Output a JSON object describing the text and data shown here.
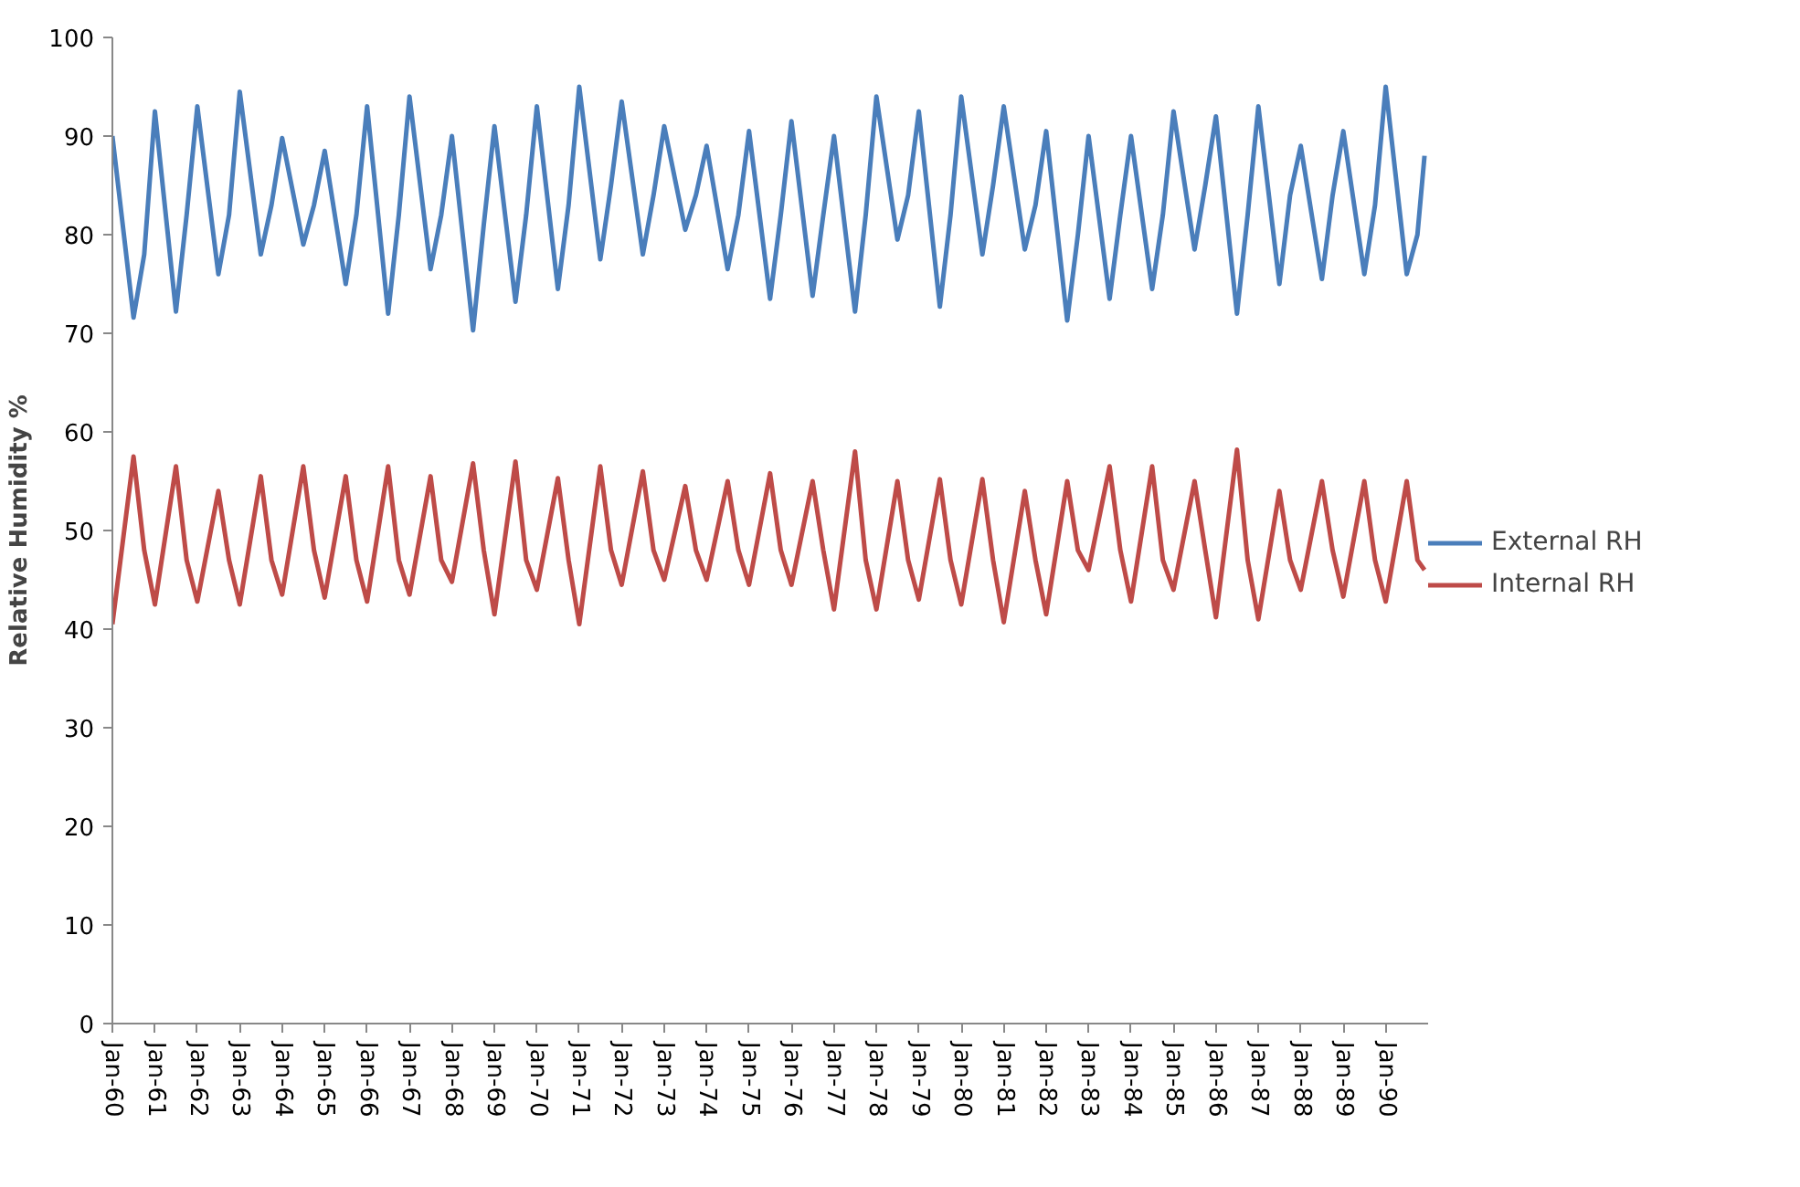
{
  "chart_data": {
    "type": "line",
    "ylabel": "Relative Humidity %",
    "x": [
      "1960-01",
      "1960-07",
      "1960-10",
      "1961-01",
      "1961-07",
      "1961-10",
      "1962-01",
      "1962-07",
      "1962-10",
      "1963-01",
      "1963-07",
      "1963-10",
      "1964-01",
      "1964-07",
      "1964-10",
      "1965-01",
      "1965-07",
      "1965-10",
      "1966-01",
      "1966-07",
      "1966-10",
      "1967-01",
      "1967-07",
      "1967-10",
      "1968-01",
      "1968-07",
      "1968-10",
      "1969-01",
      "1969-07",
      "1969-10",
      "1970-01",
      "1970-07",
      "1970-10",
      "1971-01",
      "1971-07",
      "1971-10",
      "1972-01",
      "1972-07",
      "1972-10",
      "1973-01",
      "1973-07",
      "1973-10",
      "1974-01",
      "1974-07",
      "1974-10",
      "1975-01",
      "1975-07",
      "1975-10",
      "1976-01",
      "1976-07",
      "1976-10",
      "1977-01",
      "1977-07",
      "1977-10",
      "1978-01",
      "1978-07",
      "1978-10",
      "1979-01",
      "1979-07",
      "1979-10",
      "1980-01",
      "1980-07",
      "1980-10",
      "1981-01",
      "1981-07",
      "1981-10",
      "1982-01",
      "1982-07",
      "1982-10",
      "1983-01",
      "1983-07",
      "1983-10",
      "1984-01",
      "1984-07",
      "1984-10",
      "1985-01",
      "1985-07",
      "1985-10",
      "1986-01",
      "1986-07",
      "1986-10",
      "1987-01",
      "1987-07",
      "1987-10",
      "1988-01",
      "1988-07",
      "1988-10",
      "1989-01",
      "1989-07",
      "1989-10",
      "1990-01",
      "1990-07",
      "1990-10",
      "1990-12"
    ],
    "series": [
      {
        "name": "External RH",
        "color": "#4a7ebb",
        "values": [
          90,
          71.6,
          78,
          92.5,
          72.2,
          82,
          93,
          76,
          82,
          94.5,
          78,
          83,
          89.8,
          79,
          83,
          88.5,
          75,
          82,
          93,
          72,
          82,
          94,
          76.5,
          82,
          90,
          70.3,
          81,
          91,
          73.2,
          82,
          93,
          74.5,
          83,
          95,
          77.5,
          85,
          93.5,
          78,
          84,
          91,
          80.5,
          84,
          89,
          76.5,
          82,
          90.5,
          73.5,
          82,
          91.5,
          73.8,
          82,
          90,
          72.2,
          82,
          94,
          79.5,
          84,
          92.5,
          72.7,
          82,
          94,
          78,
          85,
          93,
          78.5,
          83,
          90.5,
          71.3,
          80,
          90,
          73.5,
          82,
          90,
          74.5,
          82,
          92.5,
          78.5,
          85,
          92,
          72,
          82,
          93,
          75,
          84,
          89,
          75.5,
          84,
          90.5,
          76,
          83,
          95,
          76,
          80,
          88
        ]
      },
      {
        "name": "Internal RH",
        "color": "#be4b48",
        "values": [
          40.5,
          57.5,
          48,
          42.5,
          56.5,
          47,
          42.8,
          54,
          47,
          42.5,
          55.5,
          47,
          43.5,
          56.5,
          48,
          43.2,
          55.5,
          47,
          42.8,
          56.5,
          47,
          43.5,
          55.5,
          47,
          44.8,
          56.8,
          48,
          41.5,
          57,
          47,
          44,
          55.3,
          47,
          40.5,
          56.5,
          48,
          44.5,
          56,
          48,
          45,
          54.5,
          48,
          45,
          55,
          48,
          44.5,
          55.8,
          48,
          44.5,
          55,
          48,
          42,
          58,
          47,
          42,
          55,
          47,
          43,
          55.2,
          47,
          42.5,
          55.2,
          47,
          40.7,
          54,
          47,
          41.5,
          55,
          48,
          46,
          56.5,
          48,
          42.8,
          56.5,
          47,
          44,
          55,
          48,
          41.2,
          58.2,
          47,
          41,
          54,
          47,
          44,
          55,
          48,
          43.3,
          55,
          47,
          42.8,
          55,
          47,
          46
        ]
      }
    ],
    "xlim": [
      "1960-01",
      "1991-01"
    ],
    "xticks": [
      {
        "value": "1960-01",
        "label": "Jan-60"
      },
      {
        "value": "1961-01",
        "label": "Jan-61"
      },
      {
        "value": "1962-01",
        "label": "Jan-62"
      },
      {
        "value": "1963-01",
        "label": "Jan-63"
      },
      {
        "value": "1964-01",
        "label": "Jan-64"
      },
      {
        "value": "1965-01",
        "label": "Jan-65"
      },
      {
        "value": "1966-01",
        "label": "Jan-66"
      },
      {
        "value": "1967-01",
        "label": "Jan-67"
      },
      {
        "value": "1968-01",
        "label": "Jan-68"
      },
      {
        "value": "1969-01",
        "label": "Jan-69"
      },
      {
        "value": "1970-01",
        "label": "Jan-70"
      },
      {
        "value": "1971-01",
        "label": "Jan-71"
      },
      {
        "value": "1972-01",
        "label": "Jan-72"
      },
      {
        "value": "1973-01",
        "label": "Jan-73"
      },
      {
        "value": "1974-01",
        "label": "Jan-74"
      },
      {
        "value": "1975-01",
        "label": "Jan-75"
      },
      {
        "value": "1976-01",
        "label": "Jan-76"
      },
      {
        "value": "1977-01",
        "label": "Jan-77"
      },
      {
        "value": "1978-01",
        "label": "Jan-78"
      },
      {
        "value": "1979-01",
        "label": "Jan-79"
      },
      {
        "value": "1980-01",
        "label": "Jan-80"
      },
      {
        "value": "1981-01",
        "label": "Jan-81"
      },
      {
        "value": "1982-01",
        "label": "Jan-82"
      },
      {
        "value": "1983-01",
        "label": "Jan-83"
      },
      {
        "value": "1984-01",
        "label": "Jan-84"
      },
      {
        "value": "1985-01",
        "label": "Jan-85"
      },
      {
        "value": "1986-01",
        "label": "Jan-86"
      },
      {
        "value": "1987-01",
        "label": "Jan-87"
      },
      {
        "value": "1988-01",
        "label": "Jan-88"
      },
      {
        "value": "1989-01",
        "label": "Jan-89"
      },
      {
        "value": "1990-01",
        "label": "Jan-90"
      }
    ],
    "ylim": [
      0,
      100
    ],
    "yticks": [
      0,
      10,
      20,
      30,
      40,
      50,
      60,
      70,
      80,
      90,
      100
    ],
    "grid": false,
    "legend": "right",
    "marker": "none",
    "line_style": "solid"
  }
}
